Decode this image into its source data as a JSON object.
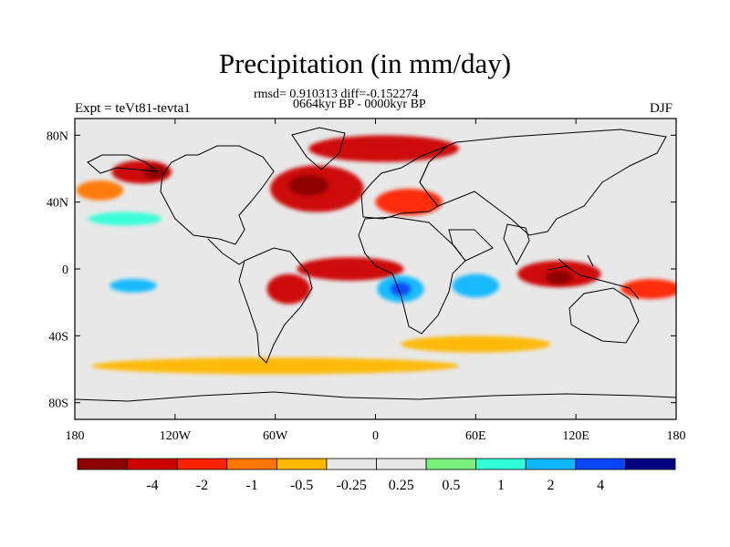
{
  "chart_data": {
    "type": "heatmap",
    "title": "Precipitation (in mm/day)",
    "stats_label": "rmsd= 0.910313 diff=-0.152274",
    "period_label": "0664kyr BP - 0000kyr BP",
    "left_label": "Expt = teVt81-tevta1",
    "right_label": "DJF",
    "x_ticks": [
      {
        "label": "180",
        "value": -180
      },
      {
        "label": "120W",
        "value": -120
      },
      {
        "label": "60W",
        "value": -60
      },
      {
        "label": "0",
        "value": 0
      },
      {
        "label": "60E",
        "value": 60
      },
      {
        "label": "120E",
        "value": 120
      },
      {
        "label": "180",
        "value": 180
      }
    ],
    "y_ticks": [
      {
        "label": "80N",
        "value": 80
      },
      {
        "label": "40N",
        "value": 40
      },
      {
        "label": "0",
        "value": 0
      },
      {
        "label": "40S",
        "value": -40
      },
      {
        "label": "80S",
        "value": -80
      }
    ],
    "xlim": [
      -180,
      180
    ],
    "ylim": [
      -90,
      90
    ],
    "colorbar": {
      "colors": [
        "#8b0000",
        "#cc0000",
        "#ff2200",
        "#ff7700",
        "#ffb800",
        "#e8e8e8",
        "#e8e8e8",
        "#7cf07c",
        "#30ffd8",
        "#10b8ff",
        "#0a46ff",
        "#000080"
      ],
      "labels": [
        "-4",
        "-2",
        "-1",
        "-0.5",
        "-0.25",
        "0.25",
        "0.5",
        "1",
        "2",
        "4"
      ]
    },
    "regions": [
      {
        "name": "north-atlantic-drying",
        "level": "-2",
        "lon": -35,
        "lat": 48,
        "rx": 28,
        "ry": 14
      },
      {
        "name": "north-atlantic-drying-core",
        "level": "-4",
        "lon": -40,
        "lat": 50,
        "rx": 12,
        "ry": 6
      },
      {
        "name": "nordic-drying",
        "level": "-2",
        "lon": 5,
        "lat": 72,
        "rx": 45,
        "ry": 8
      },
      {
        "name": "gulf-alaska-drying",
        "level": "-2",
        "lon": -140,
        "lat": 58,
        "rx": 18,
        "ry": 7
      },
      {
        "name": "gulf-alaska-core",
        "level": "-4",
        "lon": -132,
        "lat": 58,
        "rx": 7,
        "ry": 4
      },
      {
        "name": "north-pacific-drying",
        "level": "-0.5",
        "lon": -165,
        "lat": 47,
        "rx": 14,
        "ry": 6
      },
      {
        "name": "mediterranean-drying",
        "level": "-1",
        "lon": 20,
        "lat": 40,
        "rx": 20,
        "ry": 8
      },
      {
        "name": "atlantic-itcz-drying",
        "level": "-2",
        "lon": -15,
        "lat": 0,
        "rx": 32,
        "ry": 7
      },
      {
        "name": "south-america-drying",
        "level": "-2",
        "lon": -52,
        "lat": -12,
        "rx": 13,
        "ry": 9
      },
      {
        "name": "central-africa-wetting",
        "level": "2",
        "lon": 15,
        "lat": -12,
        "rx": 14,
        "ry": 8
      },
      {
        "name": "central-africa-core",
        "level": "4",
        "lon": 15,
        "lat": -12,
        "rx": 6,
        "ry": 4
      },
      {
        "name": "indian-ocean-wetting",
        "level": "2",
        "lon": 60,
        "lat": -10,
        "rx": 14,
        "ry": 7
      },
      {
        "name": "maritime-continent-drying",
        "level": "-2",
        "lon": 110,
        "lat": -3,
        "rx": 25,
        "ry": 8
      },
      {
        "name": "maritime-continent-core",
        "level": "-4",
        "lon": 110,
        "lat": -5,
        "rx": 8,
        "ry": 4
      },
      {
        "name": "spcz-drying",
        "level": "-1",
        "lon": 165,
        "lat": -12,
        "rx": 18,
        "ry": 6
      },
      {
        "name": "east-pacific-wetting",
        "level": "2",
        "lon": -145,
        "lat": -10,
        "rx": 14,
        "ry": 4
      },
      {
        "name": "north-pacific-wetting",
        "level": "1",
        "lon": -150,
        "lat": 30,
        "rx": 22,
        "ry": 4
      },
      {
        "name": "southern-ocean-drying",
        "level": "-0.25",
        "lon": -60,
        "lat": -58,
        "rx": 110,
        "ry": 5
      },
      {
        "name": "south-indian-drying",
        "level": "-0.25",
        "lon": 60,
        "lat": -45,
        "rx": 45,
        "ry": 5
      }
    ]
  }
}
